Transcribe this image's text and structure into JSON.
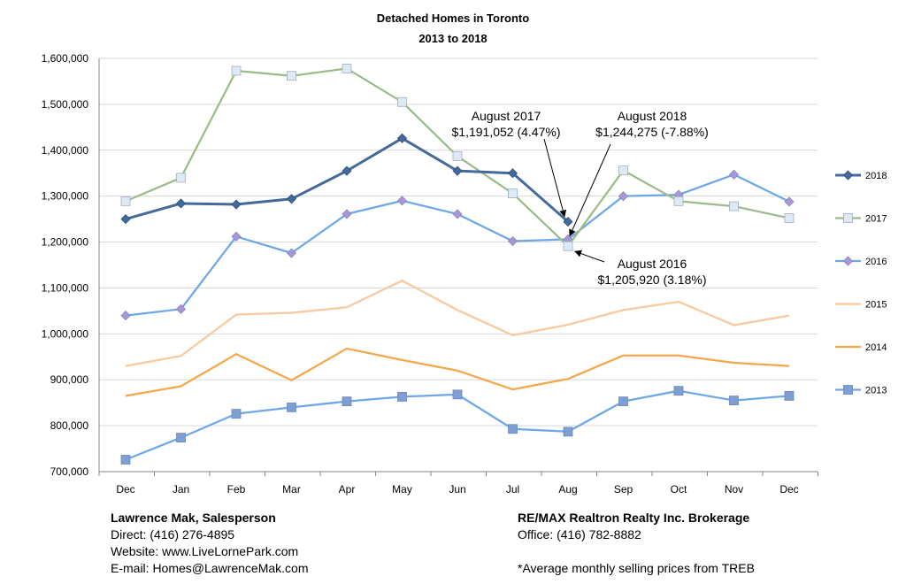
{
  "chart_data": {
    "type": "line",
    "title": "Detached Homes in Toronto",
    "subtitle": "2013 to 2018",
    "categories": [
      "Dec",
      "Jan",
      "Feb",
      "Mar",
      "Apr",
      "May",
      "Jun",
      "Jul",
      "Aug",
      "Sep",
      "Oct",
      "Nov",
      "Dec"
    ],
    "ylim": [
      700000,
      1600000
    ],
    "yticks": [
      "700,000",
      "800,000",
      "900,000",
      "1,000,000",
      "1,100,000",
      "1,200,000",
      "1,300,000",
      "1,400,000",
      "1,500,000",
      "1,600,000"
    ],
    "grid": true,
    "legend_position": "right",
    "series": [
      {
        "name": "2018",
        "color": "#44699b",
        "marker": "diamond",
        "values": [
          1250000,
          1284000,
          1282000,
          1294000,
          1355000,
          1426000,
          1355000,
          1350000,
          1244275,
          null,
          null,
          null,
          null
        ]
      },
      {
        "name": "2017",
        "color": "#9bbb89",
        "marker": "square-light",
        "values": [
          1289000,
          1340000,
          1573000,
          1562000,
          1578000,
          1505000,
          1387000,
          1306000,
          1191052,
          1356000,
          1289000,
          1278000,
          1252000
        ]
      },
      {
        "name": "2016",
        "color": "#6da7e8",
        "marker": "diamond-purple",
        "values": [
          1040000,
          1054000,
          1212000,
          1176000,
          1261000,
          1290000,
          1261000,
          1202000,
          1205920,
          1300000,
          1303000,
          1347000,
          1288000
        ]
      },
      {
        "name": "2015",
        "color": "#f9c89c",
        "marker": "none",
        "values": [
          930000,
          952000,
          1042000,
          1046000,
          1058000,
          1116000,
          1052000,
          997000,
          1020000,
          1052000,
          1070000,
          1019000,
          1040000
        ]
      },
      {
        "name": "2014",
        "color": "#f5a74c",
        "marker": "none",
        "values": [
          865000,
          886000,
          956000,
          899000,
          968000,
          943000,
          920000,
          879000,
          902000,
          953000,
          953000,
          937000,
          930000
        ]
      },
      {
        "name": "2013",
        "color": "#6da7e8",
        "marker": "square-blue",
        "values": [
          726000,
          774000,
          826000,
          840000,
          853000,
          863000,
          868000,
          793000,
          787000,
          853000,
          876000,
          855000,
          865000
        ]
      }
    ],
    "annotations": [
      {
        "lines": [
          "August 2017",
          "$1,191,052 (4.47%)"
        ]
      },
      {
        "lines": [
          "August 2018",
          "$1,244,275 (-7.88%)"
        ]
      },
      {
        "lines": [
          "August 2016",
          "$1,205,920 (3.18%)"
        ]
      }
    ]
  },
  "footer": {
    "left": {
      "name": "Lawrence Mak, Salesperson",
      "direct": "Direct:  (416) 276-4895",
      "website": "Website:  www.LiveLornePark.com",
      "email": "E-mail:  Homes@LawrenceMak.com"
    },
    "right": {
      "brokerage": "RE/MAX Realtron Realty Inc. Brokerage",
      "office": "Office: (416) 782-8882",
      "note": "*Average monthly selling prices from TREB"
    }
  }
}
